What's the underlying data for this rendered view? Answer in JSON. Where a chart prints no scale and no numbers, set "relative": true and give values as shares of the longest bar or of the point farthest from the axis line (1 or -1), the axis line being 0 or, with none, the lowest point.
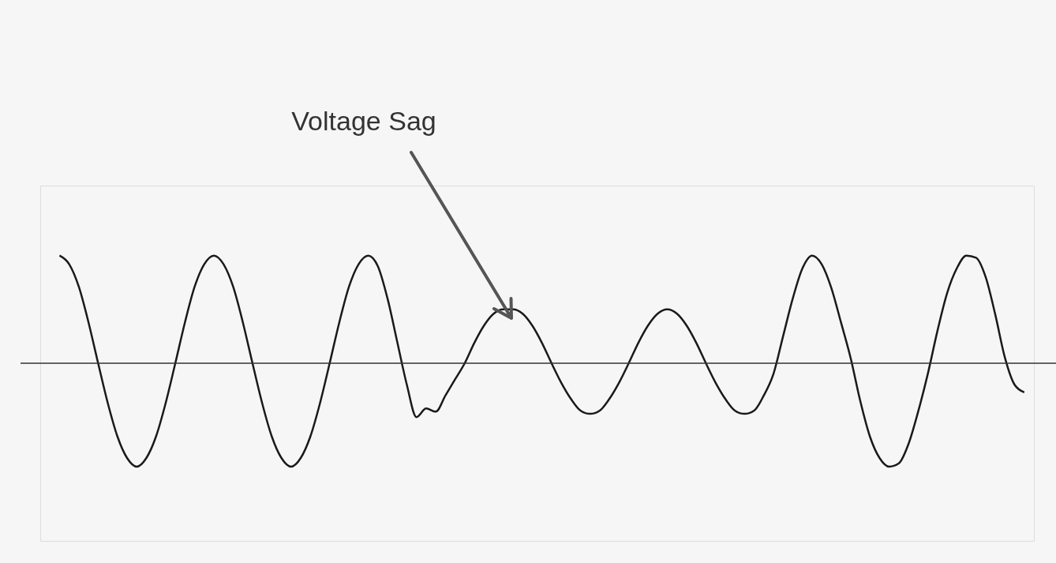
{
  "chart_data": {
    "type": "line",
    "relative": true,
    "color": "#1a1a1a",
    "annotations": [
      "Voltage Sag"
    ],
    "categories": [
      null,
      null,
      null,
      null,
      null,
      null,
      null,
      null,
      null,
      null,
      null,
      null,
      null,
      null,
      null,
      null,
      null,
      null,
      null,
      null,
      null,
      null,
      null,
      null,
      null,
      null,
      null,
      null,
      null,
      null,
      null,
      null,
      null,
      null,
      null,
      null,
      null,
      null,
      null,
      null,
      null,
      null,
      null,
      null,
      null,
      null,
      null,
      null,
      null,
      null,
      null,
      null,
      null,
      null,
      null,
      null,
      null,
      null,
      null,
      null,
      null,
      null,
      null,
      null,
      null,
      null,
      null,
      null,
      null,
      null,
      null,
      null,
      null,
      null,
      null,
      null,
      null,
      null,
      null,
      null,
      null,
      null,
      null,
      null,
      null,
      null,
      null,
      null,
      null,
      null,
      null,
      null,
      null,
      null,
      null,
      null,
      null,
      null,
      null,
      null,
      null
    ],
    "values": [
      1,
      0.92,
      0.71,
      0.38,
      0,
      -0.37,
      -0.68,
      -0.88,
      -0.96,
      -0.88,
      -0.68,
      -0.37,
      0,
      0.38,
      0.71,
      0.92,
      1,
      0.92,
      0.71,
      0.38,
      0,
      -0.37,
      -0.68,
      -0.88,
      -0.96,
      -0.88,
      -0.68,
      -0.37,
      0,
      0.38,
      0.71,
      0.92,
      1,
      0.9,
      0.6,
      0.2,
      -0.2,
      -0.5,
      -0.42,
      -0.45,
      -0.3,
      -0.15,
      0,
      0.19,
      0.35,
      0.46,
      0.5,
      0.5,
      0.46,
      0.35,
      0.19,
      0,
      -0.18,
      -0.33,
      -0.44,
      -0.47,
      -0.44,
      -0.33,
      -0.18,
      0,
      0.19,
      0.35,
      0.46,
      0.5,
      0.46,
      0.35,
      0.19,
      0,
      -0.18,
      -0.33,
      -0.44,
      -0.47,
      -0.44,
      -0.3,
      -0.1,
      0.25,
      0.6,
      0.88,
      1,
      0.92,
      0.7,
      0.38,
      0.05,
      -0.35,
      -0.68,
      -0.88,
      -0.96,
      -0.93,
      -0.75,
      -0.45,
      -0.1,
      0.3,
      0.65,
      0.88,
      1,
      0.98,
      0.8,
      0.45,
      0.05,
      -0.2,
      -0.27
    ]
  }
}
